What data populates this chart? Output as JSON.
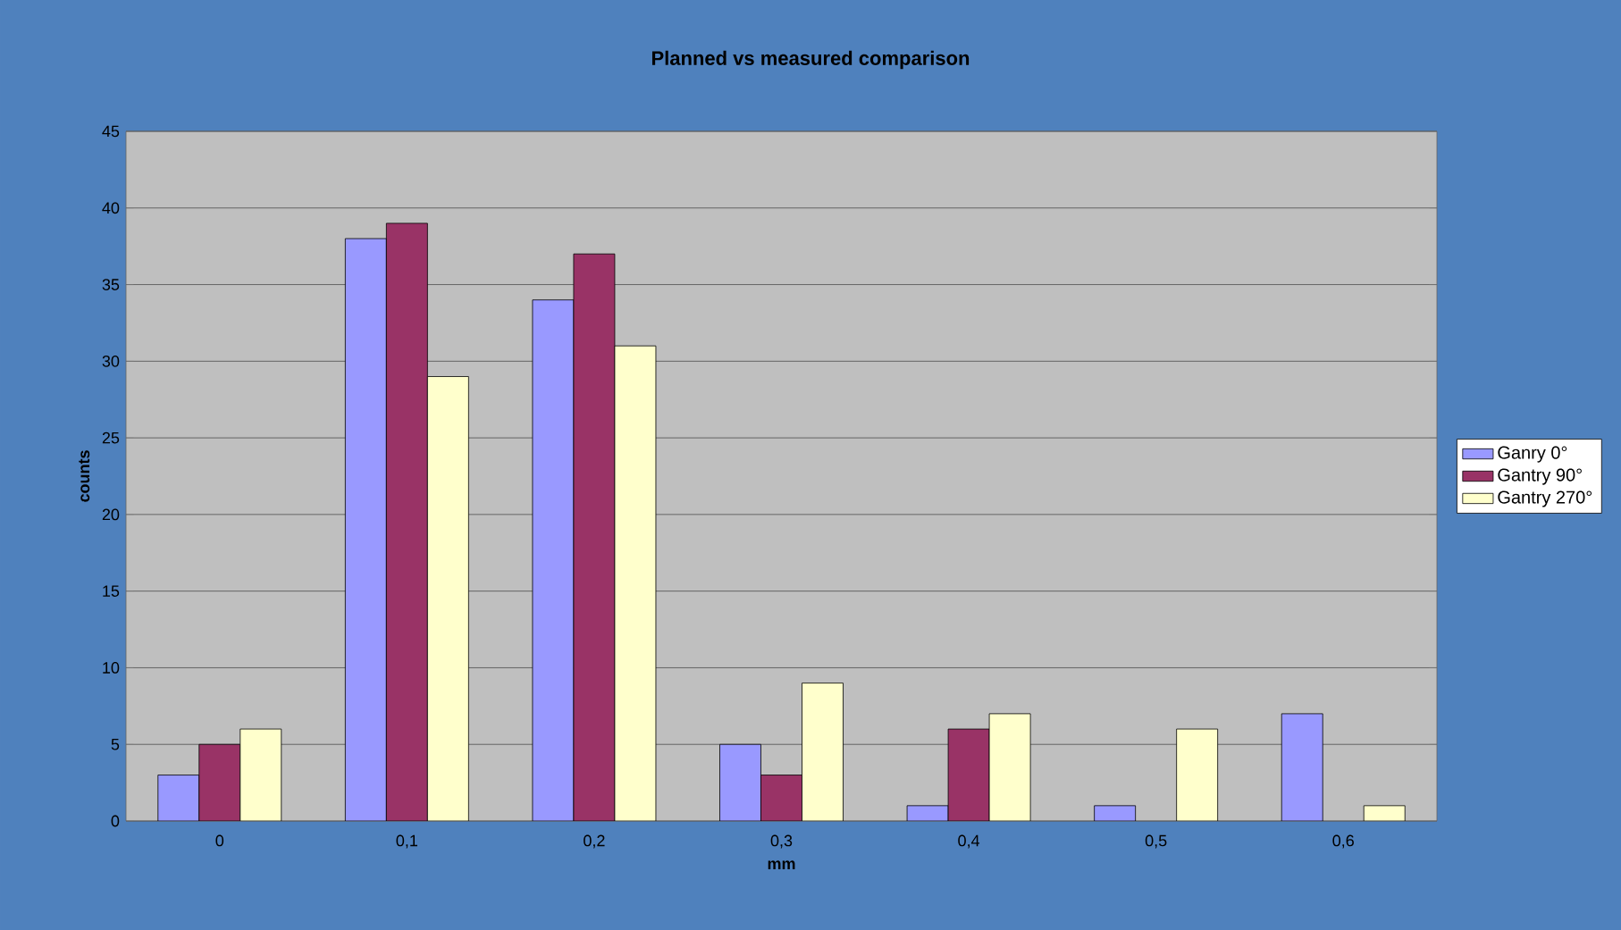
{
  "chart_data": {
    "type": "bar",
    "title": "Planned vs measured comparison",
    "xlabel": "mm",
    "ylabel": "counts",
    "categories": [
      "0",
      "0,1",
      "0,2",
      "0,3",
      "0,4",
      "0,5",
      "0,6"
    ],
    "series": [
      {
        "name": "Ganry 0°",
        "color": "#9999ff",
        "values": [
          3,
          38,
          34,
          5,
          1,
          1,
          7
        ]
      },
      {
        "name": "Gantry 90°",
        "color": "#993366",
        "values": [
          5,
          39,
          37,
          3,
          6,
          null,
          null
        ]
      },
      {
        "name": "Gantry 270°",
        "color": "#ffffcc",
        "values": [
          6,
          29,
          31,
          9,
          7,
          6,
          1
        ]
      }
    ],
    "ylim": [
      0,
      45
    ],
    "yticks": [
      0,
      5,
      10,
      15,
      20,
      25,
      30,
      35,
      40,
      45
    ],
    "grid": "y",
    "legend": "right"
  }
}
